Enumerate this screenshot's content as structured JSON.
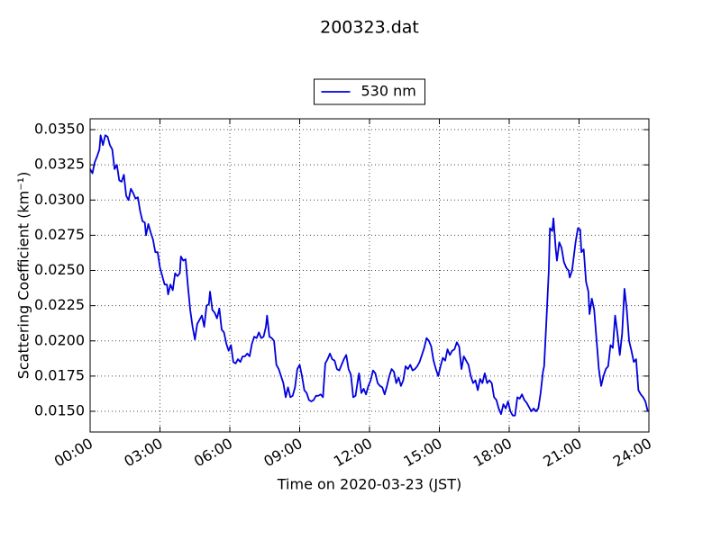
{
  "chart_data": {
    "type": "line",
    "title": "200323.dat",
    "xlabel": "Time on 2020-03-23 (JST)",
    "ylabel": "Scattering Coefficient (km⁻¹)",
    "legend": "upper center",
    "grid": true,
    "xlim": [
      0,
      24
    ],
    "ylim": [
      0.01353,
      0.03577
    ],
    "xticks": [
      {
        "value": 0,
        "label": "00:00"
      },
      {
        "value": 3,
        "label": "03:00"
      },
      {
        "value": 6,
        "label": "06:00"
      },
      {
        "value": 9,
        "label": "09:00"
      },
      {
        "value": 12,
        "label": "12:00"
      },
      {
        "value": 15,
        "label": "15:00"
      },
      {
        "value": 18,
        "label": "18:00"
      },
      {
        "value": 21,
        "label": "21:00"
      },
      {
        "value": 24,
        "label": "24:00"
      }
    ],
    "yticks": [
      {
        "value": 0.015,
        "label": "0.0150"
      },
      {
        "value": 0.0175,
        "label": "0.0175"
      },
      {
        "value": 0.02,
        "label": "0.0200"
      },
      {
        "value": 0.0225,
        "label": "0.0225"
      },
      {
        "value": 0.025,
        "label": "0.0250"
      },
      {
        "value": 0.0275,
        "label": "0.0275"
      },
      {
        "value": 0.03,
        "label": "0.0300"
      },
      {
        "value": 0.0325,
        "label": "0.0325"
      },
      {
        "value": 0.035,
        "label": "0.0350"
      }
    ],
    "x": [
      0,
      0.1,
      0.2,
      0.3,
      0.4,
      0.45,
      0.55,
      0.65,
      0.75,
      0.85,
      0.95,
      1.05,
      1.15,
      1.25,
      1.35,
      1.45,
      1.55,
      1.65,
      1.75,
      1.85,
      1.95,
      2.05,
      2.15,
      2.25,
      2.35,
      2.4,
      2.5,
      2.6,
      2.7,
      2.8,
      2.9,
      3.0,
      3.1,
      3.2,
      3.3,
      3.35,
      3.45,
      3.55,
      3.65,
      3.75,
      3.85,
      3.9,
      4.0,
      4.1,
      4.2,
      4.3,
      4.4,
      4.5,
      4.6,
      4.7,
      4.8,
      4.9,
      5.0,
      5.1,
      5.15,
      5.25,
      5.35,
      5.45,
      5.55,
      5.65,
      5.75,
      5.85,
      5.95,
      6.05,
      6.15,
      6.25,
      6.35,
      6.45,
      6.55,
      6.65,
      6.75,
      6.85,
      6.95,
      7.05,
      7.15,
      7.25,
      7.35,
      7.45,
      7.55,
      7.6,
      7.7,
      7.8,
      7.9,
      8.0,
      8.1,
      8.2,
      8.3,
      8.4,
      8.5,
      8.6,
      8.7,
      8.8,
      8.9,
      9.0,
      9.1,
      9.2,
      9.3,
      9.4,
      9.5,
      9.6,
      9.7,
      9.8,
      9.9,
      10.0,
      10.1,
      10.2,
      10.3,
      10.4,
      10.5,
      10.6,
      10.7,
      10.8,
      10.9,
      11.0,
      11.1,
      11.2,
      11.3,
      11.4,
      11.5,
      11.55,
      11.65,
      11.75,
      11.85,
      11.95,
      12.05,
      12.15,
      12.25,
      12.35,
      12.45,
      12.55,
      12.65,
      12.75,
      12.85,
      12.95,
      13.05,
      13.15,
      13.25,
      13.35,
      13.45,
      13.55,
      13.65,
      13.75,
      13.85,
      13.95,
      14.05,
      14.15,
      14.25,
      14.35,
      14.45,
      14.55,
      14.65,
      14.75,
      14.85,
      14.95,
      15.05,
      15.15,
      15.25,
      15.35,
      15.45,
      15.55,
      15.65,
      15.75,
      15.85,
      15.95,
      16.05,
      16.15,
      16.25,
      16.35,
      16.45,
      16.55,
      16.65,
      16.75,
      16.85,
      16.95,
      17.05,
      17.15,
      17.25,
      17.35,
      17.45,
      17.55,
      17.65,
      17.75,
      17.85,
      17.95,
      18.05,
      18.15,
      18.25,
      18.35,
      18.45,
      18.55,
      18.65,
      18.75,
      18.85,
      18.95,
      19.05,
      19.15,
      19.25,
      19.35,
      19.45,
      19.5,
      19.6,
      19.7,
      19.75,
      19.85,
      19.9,
      20.0,
      20.05,
      20.15,
      20.25,
      20.35,
      20.45,
      20.55,
      20.6,
      20.7,
      20.85,
      20.95,
      21.05,
      21.1,
      21.2,
      21.3,
      21.4,
      21.45,
      21.55,
      21.65,
      21.75,
      21.85,
      21.95,
      22.05,
      22.15,
      22.25,
      22.35,
      22.45,
      22.55,
      22.65,
      22.75,
      22.85,
      22.95,
      23.05,
      23.15,
      23.25,
      23.35,
      23.45,
      23.55,
      23.65,
      23.75,
      23.85,
      23.95
    ],
    "series": [
      {
        "name": "530 nm",
        "color": "#0000dd",
        "values": [
          0.0322,
          0.0319,
          0.0327,
          0.0331,
          0.0336,
          0.0346,
          0.0339,
          0.0346,
          0.0345,
          0.0339,
          0.0336,
          0.0322,
          0.0325,
          0.0314,
          0.0313,
          0.0318,
          0.0303,
          0.03,
          0.0308,
          0.0305,
          0.0301,
          0.0302,
          0.0292,
          0.0285,
          0.0284,
          0.0275,
          0.0283,
          0.0277,
          0.0272,
          0.0263,
          0.0263,
          0.0252,
          0.0246,
          0.024,
          0.024,
          0.0233,
          0.024,
          0.0236,
          0.0248,
          0.0246,
          0.0248,
          0.026,
          0.0257,
          0.0258,
          0.0239,
          0.0222,
          0.021,
          0.0201,
          0.0212,
          0.0215,
          0.0218,
          0.021,
          0.0225,
          0.0226,
          0.0235,
          0.0222,
          0.022,
          0.0216,
          0.0223,
          0.0208,
          0.0206,
          0.0198,
          0.0193,
          0.0197,
          0.0185,
          0.0184,
          0.0187,
          0.0185,
          0.0189,
          0.0189,
          0.0191,
          0.0189,
          0.0198,
          0.0203,
          0.0202,
          0.0206,
          0.0202,
          0.0203,
          0.021,
          0.0218,
          0.0203,
          0.0202,
          0.02,
          0.0183,
          0.018,
          0.0175,
          0.017,
          0.016,
          0.0167,
          0.016,
          0.0161,
          0.0167,
          0.018,
          0.0183,
          0.0175,
          0.0165,
          0.0163,
          0.0158,
          0.0157,
          0.0158,
          0.0161,
          0.0161,
          0.0162,
          0.016,
          0.0184,
          0.0187,
          0.0191,
          0.0187,
          0.0186,
          0.018,
          0.0179,
          0.0183,
          0.0187,
          0.019,
          0.018,
          0.0176,
          0.016,
          0.0161,
          0.0172,
          0.0177,
          0.0163,
          0.0166,
          0.0162,
          0.0168,
          0.0172,
          0.0179,
          0.0177,
          0.017,
          0.0168,
          0.0167,
          0.0162,
          0.0168,
          0.0175,
          0.018,
          0.0178,
          0.017,
          0.0174,
          0.0168,
          0.0172,
          0.0182,
          0.018,
          0.0183,
          0.0179,
          0.018,
          0.0182,
          0.0185,
          0.019,
          0.0195,
          0.0202,
          0.02,
          0.0196,
          0.0186,
          0.018,
          0.0175,
          0.0182,
          0.0188,
          0.0186,
          0.0194,
          0.019,
          0.0193,
          0.0194,
          0.0199,
          0.0196,
          0.018,
          0.0189,
          0.0186,
          0.0183,
          0.0175,
          0.017,
          0.0172,
          0.0165,
          0.0173,
          0.017,
          0.0177,
          0.017,
          0.0172,
          0.017,
          0.016,
          0.0158,
          0.0152,
          0.0148,
          0.0155,
          0.0152,
          0.0157,
          0.015,
          0.0147,
          0.0147,
          0.016,
          0.0159,
          0.0162,
          0.0158,
          0.0156,
          0.0153,
          0.015,
          0.0152,
          0.015,
          0.0152,
          0.0163,
          0.0178,
          0.0182,
          0.0215,
          0.025,
          0.028,
          0.0278,
          0.0287,
          0.0265,
          0.0257,
          0.027,
          0.0266,
          0.0256,
          0.0252,
          0.025,
          0.0245,
          0.025,
          0.027,
          0.028,
          0.0279,
          0.0263,
          0.0265,
          0.0242,
          0.0235,
          0.0219,
          0.023,
          0.0222,
          0.0201,
          0.018,
          0.0168,
          0.0175,
          0.018,
          0.0182,
          0.0197,
          0.0195,
          0.0218,
          0.0205,
          0.019,
          0.0205,
          0.0237,
          0.0222,
          0.02,
          0.0193,
          0.0185,
          0.0187,
          0.0165,
          0.0162,
          0.016,
          0.0157,
          0.015
        ]
      }
    ]
  }
}
